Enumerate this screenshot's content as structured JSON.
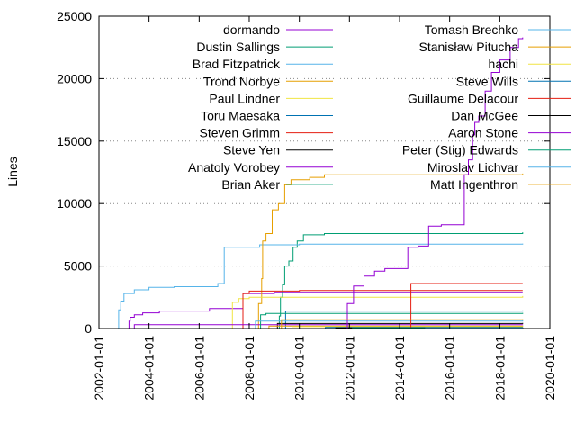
{
  "chart_data": {
    "type": "line",
    "title": "",
    "xlabel": "",
    "ylabel": "Lines",
    "xlim": [
      "2002-01-01",
      "2020-01-01"
    ],
    "ylim": [
      0,
      25000
    ],
    "x_ticks": [
      "2002-01-01",
      "2004-01-01",
      "2006-01-01",
      "2008-01-01",
      "2010-01-01",
      "2012-01-01",
      "2014-01-01",
      "2016-01-01",
      "2018-01-01",
      "2020-01-01"
    ],
    "y_ticks": [
      0,
      5000,
      10000,
      15000,
      20000,
      25000
    ],
    "y_tick_labels": [
      "0",
      "5000",
      "10000",
      "15000",
      "20000",
      "25000"
    ],
    "grid": "y-major dotted",
    "legend_position": "top-right, two columns",
    "series": [
      {
        "name": "dormando",
        "color": "#9400d3",
        "points": [
          [
            "2003-03-01",
            0
          ],
          [
            "2003-03-15",
            600
          ],
          [
            "2003-04-01",
            900
          ],
          [
            "2003-06-01",
            1100
          ],
          [
            "2003-10-01",
            1250
          ],
          [
            "2004-06-01",
            1400
          ],
          [
            "2006-06-01",
            1600
          ],
          [
            "2007-10-01",
            2800
          ],
          [
            "2009-01-01",
            2900
          ],
          [
            "2018-12-01",
            2900
          ]
        ]
      },
      {
        "name": "Dustin Sallings",
        "color": "#009e73",
        "points": [
          [
            "2009-03-01",
            0
          ],
          [
            "2009-03-15",
            1000
          ],
          [
            "2009-04-01",
            2500
          ],
          [
            "2009-05-01",
            3500
          ],
          [
            "2009-06-01",
            5000
          ],
          [
            "2009-08-01",
            5400
          ],
          [
            "2009-10-01",
            6500
          ],
          [
            "2009-12-01",
            7000
          ],
          [
            "2010-03-01",
            7500
          ],
          [
            "2011-01-01",
            7600
          ],
          [
            "2018-12-01",
            7700
          ]
        ]
      },
      {
        "name": "Brad Fitzpatrick",
        "color": "#56b4e9",
        "points": [
          [
            "2002-10-01",
            0
          ],
          [
            "2002-10-15",
            1500
          ],
          [
            "2002-11-15",
            2200
          ],
          [
            "2003-01-01",
            2800
          ],
          [
            "2003-06-01",
            3100
          ],
          [
            "2004-01-01",
            3300
          ],
          [
            "2005-01-01",
            3350
          ],
          [
            "2006-10-01",
            3600
          ],
          [
            "2007-01-01",
            6500
          ],
          [
            "2008-06-01",
            6700
          ],
          [
            "2010-01-01",
            6750
          ],
          [
            "2018-12-01",
            6800
          ]
        ]
      },
      {
        "name": "Trond Norbye",
        "color": "#e69f00",
        "points": [
          [
            "2008-04-01",
            0
          ],
          [
            "2008-05-15",
            2000
          ],
          [
            "2008-07-01",
            4000
          ],
          [
            "2008-07-15",
            7000
          ],
          [
            "2008-09-01",
            7600
          ],
          [
            "2008-12-01",
            9500
          ],
          [
            "2009-03-01",
            10000
          ],
          [
            "2009-06-01",
            11500
          ],
          [
            "2009-09-01",
            11900
          ],
          [
            "2010-06-01",
            12100
          ],
          [
            "2011-01-01",
            12300
          ],
          [
            "2018-12-01",
            12400
          ]
        ]
      },
      {
        "name": "Paul Lindner",
        "color": "#f0e442",
        "points": [
          [
            "2007-04-01",
            0
          ],
          [
            "2007-05-01",
            2100
          ],
          [
            "2007-08-01",
            2400
          ],
          [
            "2008-01-01",
            2500
          ],
          [
            "2018-12-01",
            2600
          ]
        ]
      },
      {
        "name": "Toru Maesaka",
        "color": "#0072b2",
        "points": [
          [
            "2009-06-01",
            0
          ],
          [
            "2009-06-15",
            1400
          ],
          [
            "2018-12-01",
            1450
          ]
        ]
      },
      {
        "name": "Steven Grimm",
        "color": "#e51e10",
        "points": [
          [
            "2007-09-01",
            0
          ],
          [
            "2007-10-01",
            2800
          ],
          [
            "2008-01-01",
            3000
          ],
          [
            "2010-01-01",
            3050
          ],
          [
            "2018-12-01",
            3050
          ]
        ]
      },
      {
        "name": "Steve Yen",
        "color": "#000000",
        "points": [
          [
            "2009-02-01",
            0
          ],
          [
            "2009-02-15",
            400
          ],
          [
            "2018-12-01",
            450
          ]
        ]
      },
      {
        "name": "Anatoly Vorobey",
        "color": "#9400d3",
        "points": [
          [
            "2003-05-01",
            0
          ],
          [
            "2003-06-01",
            300
          ],
          [
            "2018-12-01",
            320
          ]
        ]
      },
      {
        "name": "Brian Aker",
        "color": "#009e73",
        "points": [
          [
            "2008-06-01",
            0
          ],
          [
            "2008-06-15",
            1100
          ],
          [
            "2008-09-01",
            1200
          ],
          [
            "2018-12-01",
            1250
          ]
        ]
      },
      {
        "name": "Tomash Brechko",
        "color": "#56b4e9",
        "points": [
          [
            "2008-03-01",
            0
          ],
          [
            "2008-04-01",
            600
          ],
          [
            "2018-12-01",
            650
          ]
        ]
      },
      {
        "name": "Stanisław Pitucha",
        "color": "#e69f00",
        "points": [
          [
            "2008-10-01",
            0
          ],
          [
            "2008-10-15",
            200
          ],
          [
            "2018-12-01",
            220
          ]
        ]
      },
      {
        "name": "hachi",
        "color": "#f0e442",
        "points": [
          [
            "2009-09-01",
            0
          ],
          [
            "2009-09-15",
            150
          ],
          [
            "2018-12-01",
            160
          ]
        ]
      },
      {
        "name": "Steve Wills",
        "color": "#0072b2",
        "points": [
          [
            "2011-01-01",
            0
          ],
          [
            "2011-01-15",
            90
          ],
          [
            "2018-12-01",
            100
          ]
        ]
      },
      {
        "name": "Guillaume Delacour",
        "color": "#e51e10",
        "points": [
          [
            "2014-06-01",
            0
          ],
          [
            "2014-06-15",
            3600
          ],
          [
            "2018-12-01",
            3600
          ]
        ]
      },
      {
        "name": "Dan McGee",
        "color": "#000000",
        "points": [
          [
            "2011-06-01",
            0
          ],
          [
            "2011-06-15",
            60
          ],
          [
            "2018-12-01",
            70
          ]
        ]
      },
      {
        "name": "Aaron Stone",
        "color": "#9400d3",
        "points": [
          [
            "2011-10-01",
            0
          ],
          [
            "2011-12-01",
            2000
          ],
          [
            "2012-03-01",
            3400
          ],
          [
            "2012-08-01",
            4200
          ],
          [
            "2013-01-01",
            4600
          ],
          [
            "2013-06-01",
            4800
          ],
          [
            "2014-05-01",
            6500
          ],
          [
            "2014-10-01",
            6600
          ],
          [
            "2015-03-01",
            8200
          ],
          [
            "2015-09-01",
            8300
          ],
          [
            "2016-08-01",
            12300
          ],
          [
            "2016-10-01",
            13500
          ],
          [
            "2016-12-01",
            15500
          ],
          [
            "2017-01-01",
            16500
          ],
          [
            "2017-03-01",
            17000
          ],
          [
            "2017-06-01",
            19000
          ],
          [
            "2017-09-01",
            20500
          ],
          [
            "2018-01-01",
            21500
          ],
          [
            "2018-06-01",
            22500
          ],
          [
            "2018-10-01",
            23200
          ],
          [
            "2018-12-01",
            23300
          ]
        ]
      },
      {
        "name": "Peter (Stig) Edwards",
        "color": "#009e73",
        "points": [
          [
            "2012-02-01",
            0
          ],
          [
            "2012-02-15",
            50
          ],
          [
            "2018-12-01",
            60
          ]
        ]
      },
      {
        "name": "Miroslav Lichvar",
        "color": "#56b4e9",
        "points": [
          [
            "2015-01-01",
            0
          ],
          [
            "2015-01-15",
            40
          ],
          [
            "2018-12-01",
            50
          ]
        ]
      },
      {
        "name": "Matt Ingenthron",
        "color": "#e69f00",
        "points": [
          [
            "2009-04-01",
            0
          ],
          [
            "2009-04-15",
            700
          ],
          [
            "2018-12-01",
            750
          ]
        ]
      }
    ]
  }
}
